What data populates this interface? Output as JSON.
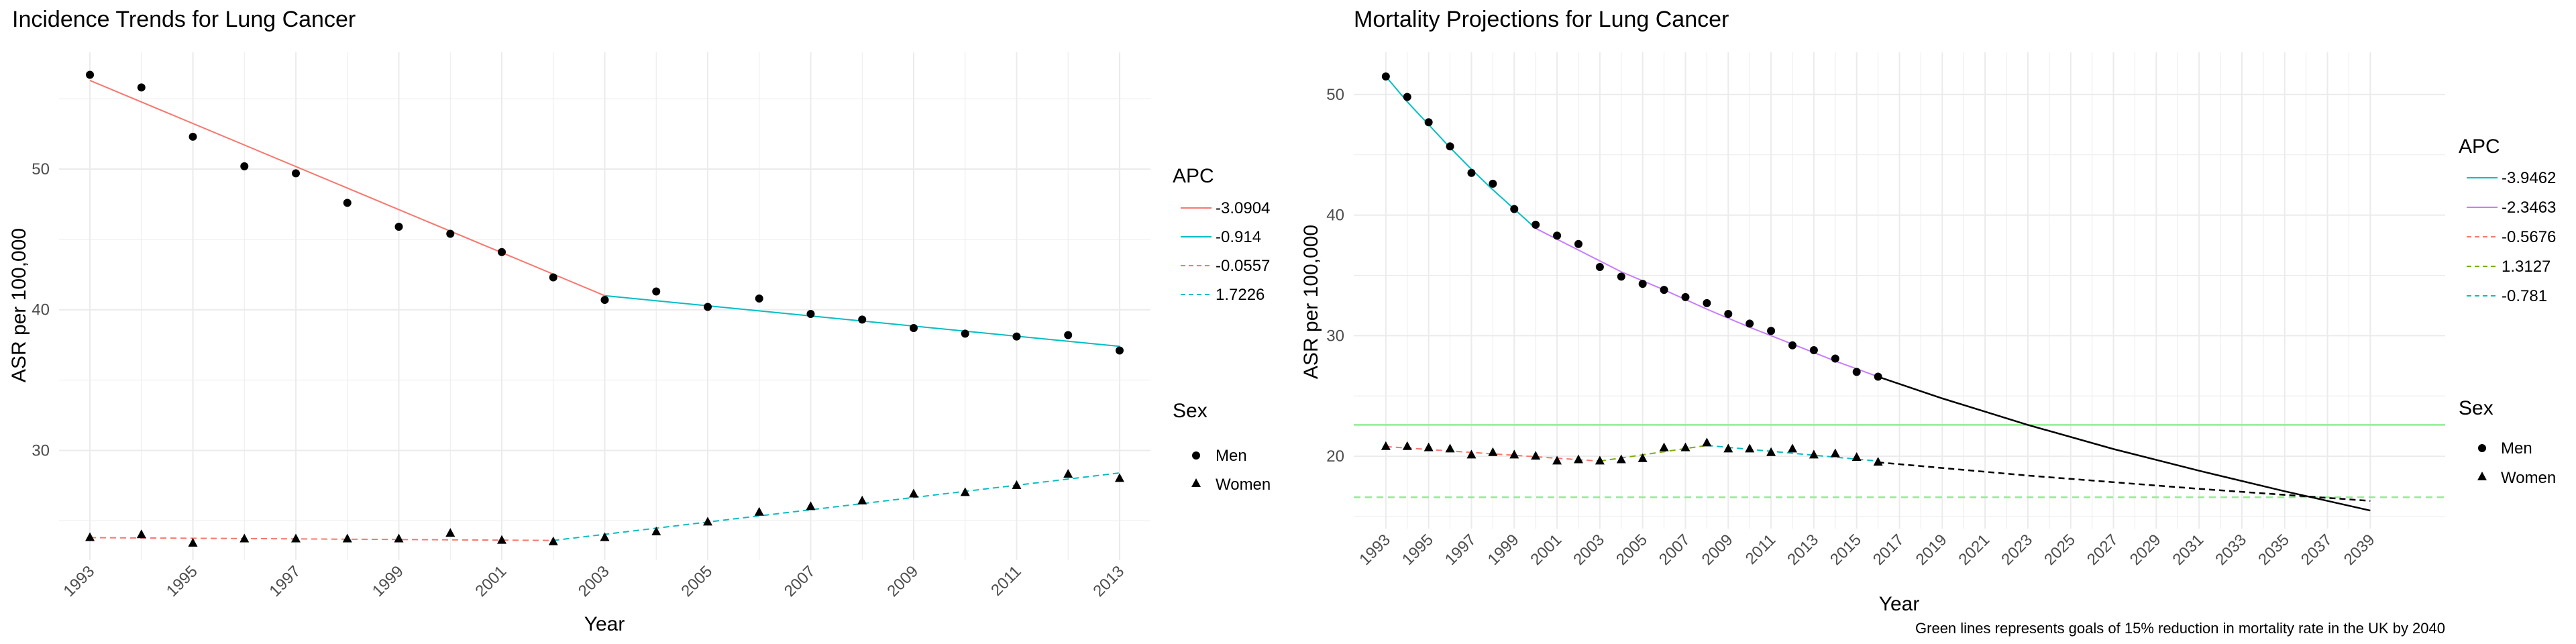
{
  "colors": {
    "red": "#F8766D",
    "cyan": "#00BFC4",
    "purple": "#C77CFF",
    "olive": "#7CAE00",
    "green": "#90EE90",
    "black": "#000000",
    "grid": "#EBEBEB"
  },
  "chart_data": [
    {
      "type": "line",
      "title": "Incidence Trends for Lung Cancer",
      "xlabel": "Year",
      "ylabel": "ASR per 100,000",
      "xlim": [
        1992.4,
        2013.6
      ],
      "ylim": [
        22.2,
        58.3
      ],
      "x_ticks": [
        1993,
        1995,
        1997,
        1999,
        2001,
        2003,
        2005,
        2007,
        2009,
        2011,
        2013
      ],
      "y_ticks": [
        30,
        40,
        50
      ],
      "grid": true,
      "legend_position": "right",
      "legend": {
        "apc_title": "APC",
        "apc_entries": [
          {
            "label": "-3.0904",
            "color": "#F8766D",
            "dashed": false
          },
          {
            "label": "-0.914",
            "color": "#00BFC4",
            "dashed": false
          },
          {
            "label": "-0.0557",
            "color": "#F8766D",
            "dashed": true
          },
          {
            "label": "1.7226",
            "color": "#00BFC4",
            "dashed": true
          }
        ],
        "sex_title": "Sex",
        "sex_entries": [
          {
            "label": "Men",
            "shape": "circle"
          },
          {
            "label": "Women",
            "shape": "triangle"
          }
        ]
      },
      "series": [
        {
          "name": "Men",
          "shape": "circle",
          "x": [
            1993,
            1994,
            1995,
            1996,
            1997,
            1998,
            1999,
            2000,
            2001,
            2002,
            2003,
            2004,
            2005,
            2006,
            2007,
            2008,
            2009,
            2010,
            2011,
            2012,
            2013
          ],
          "y": [
            56.7,
            55.8,
            52.3,
            50.2,
            49.7,
            47.6,
            45.9,
            45.4,
            44.1,
            42.3,
            40.7,
            41.3,
            40.2,
            40.8,
            39.7,
            39.3,
            38.7,
            38.3,
            38.1,
            38.2,
            37.1
          ]
        },
        {
          "name": "Women",
          "shape": "triangle",
          "x": [
            1993,
            1994,
            1995,
            1996,
            1997,
            1998,
            1999,
            2000,
            2001,
            2002,
            2003,
            2004,
            2005,
            2006,
            2007,
            2008,
            2009,
            2010,
            2011,
            2012,
            2013
          ],
          "y": [
            23.8,
            24.0,
            23.4,
            23.7,
            23.7,
            23.7,
            23.7,
            24.1,
            23.6,
            23.5,
            23.8,
            24.2,
            24.9,
            25.6,
            26.0,
            26.4,
            26.9,
            27.0,
            27.5,
            28.3,
            28.0
          ]
        }
      ],
      "fitted_lines": [
        {
          "apc": "-3.0904",
          "color": "#F8766D",
          "dashed": false,
          "x": [
            1993,
            2003
          ],
          "y": [
            56.3,
            41.0
          ]
        },
        {
          "apc": "-0.914",
          "color": "#00BFC4",
          "dashed": false,
          "x": [
            2003,
            2013
          ],
          "y": [
            41.0,
            37.4
          ]
        },
        {
          "apc": "-0.0557",
          "color": "#F8766D",
          "dashed": true,
          "x": [
            1993,
            2002
          ],
          "y": [
            23.8,
            23.6
          ]
        },
        {
          "apc": "1.7226",
          "color": "#00BFC4",
          "dashed": true,
          "x": [
            2002,
            2013
          ],
          "y": [
            23.6,
            28.4
          ]
        }
      ]
    },
    {
      "type": "line",
      "title": "Mortality Projections for Lung Cancer",
      "xlabel": "Year",
      "ylabel": "ASR per 100,000",
      "xlim": [
        1991.5,
        2042.5
      ],
      "ylim": [
        14.0,
        53.5
      ],
      "x_ticks": [
        1993,
        1995,
        1997,
        1999,
        2001,
        2003,
        2005,
        2007,
        2009,
        2011,
        2013,
        2015,
        2017,
        2019,
        2021,
        2023,
        2025,
        2027,
        2029,
        2031,
        2033,
        2035,
        2037,
        2039
      ],
      "y_ticks": [
        20,
        30,
        40,
        50
      ],
      "grid": true,
      "legend_position": "right",
      "caption": "Green lines represents goals of 15% reduction in mortality rate in the UK by 2040",
      "legend": {
        "apc_title": "APC",
        "apc_entries": [
          {
            "label": "-3.9462",
            "color": "#00BFC4",
            "dashed": false
          },
          {
            "label": "-2.3463",
            "color": "#C77CFF",
            "dashed": false
          },
          {
            "label": "-0.5676",
            "color": "#F8766D",
            "dashed": true
          },
          {
            "label": "1.3127",
            "color": "#7CAE00",
            "dashed": true
          },
          {
            "label": "-0.781",
            "color": "#00BFC4",
            "dashed": true
          }
        ],
        "sex_title": "Sex",
        "sex_entries": [
          {
            "label": "Men",
            "shape": "circle"
          },
          {
            "label": "Women",
            "shape": "triangle"
          }
        ]
      },
      "series": [
        {
          "name": "Men",
          "shape": "circle",
          "x": [
            1993,
            1994,
            1995,
            1996,
            1997,
            1998,
            1999,
            2000,
            2001,
            2002,
            2003,
            2004,
            2005,
            2006,
            2007,
            2008,
            2009,
            2010,
            2011,
            2012,
            2013,
            2014,
            2015,
            2016
          ],
          "y": [
            51.5,
            49.8,
            47.7,
            45.7,
            43.5,
            42.6,
            40.5,
            39.2,
            38.3,
            37.6,
            35.7,
            34.9,
            34.3,
            33.8,
            33.2,
            32.7,
            31.8,
            31.0,
            30.4,
            29.2,
            28.8,
            28.1,
            27.0,
            26.6
          ]
        },
        {
          "name": "Women",
          "shape": "triangle",
          "x": [
            1993,
            1994,
            1995,
            1996,
            1997,
            1998,
            1999,
            2000,
            2001,
            2002,
            2003,
            2004,
            2005,
            2006,
            2007,
            2008,
            2009,
            2010,
            2011,
            2012,
            2013,
            2014,
            2015,
            2016
          ],
          "y": [
            20.8,
            20.8,
            20.7,
            20.6,
            20.1,
            20.3,
            20.1,
            20.0,
            19.6,
            19.7,
            19.6,
            19.7,
            19.8,
            20.7,
            20.7,
            21.1,
            20.6,
            20.6,
            20.3,
            20.6,
            20.1,
            20.2,
            19.9,
            19.5
          ]
        }
      ],
      "fitted_lines": [
        {
          "apc": "-3.9462",
          "color": "#00BFC4",
          "dashed": false,
          "x": [
            1993,
            1994,
            1995,
            1996,
            1997,
            1998,
            1999,
            2000
          ],
          "y": [
            51.5,
            49.4,
            47.5,
            45.6,
            43.8,
            42.1,
            40.5,
            38.9
          ]
        },
        {
          "apc": "-2.3463",
          "color": "#C77CFF",
          "dashed": false,
          "x": [
            2000,
            2002,
            2004,
            2006,
            2008,
            2010,
            2012,
            2014,
            2016
          ],
          "y": [
            38.9,
            37.1,
            35.3,
            33.8,
            32.2,
            30.7,
            29.3,
            27.9,
            26.6
          ]
        },
        {
          "apc": "-0.5676",
          "color": "#F8766D",
          "dashed": true,
          "x": [
            1993,
            2003
          ],
          "y": [
            20.8,
            19.6
          ]
        },
        {
          "apc": "1.3127",
          "color": "#7CAE00",
          "dashed": true,
          "x": [
            2003,
            2008
          ],
          "y": [
            19.6,
            20.9
          ]
        },
        {
          "apc": "-0.781",
          "color": "#00BFC4",
          "dashed": true,
          "x": [
            2008,
            2016
          ],
          "y": [
            20.9,
            19.6
          ]
        },
        {
          "name": "Men projection",
          "color": "#000000",
          "dashed": false,
          "x": [
            2016,
            2019,
            2023,
            2027,
            2031,
            2035,
            2039
          ],
          "y": [
            26.6,
            24.8,
            22.6,
            20.6,
            18.8,
            17.1,
            15.5
          ]
        },
        {
          "name": "Women projection",
          "color": "#000000",
          "dashed": true,
          "x": [
            2016,
            2023,
            2031,
            2039
          ],
          "y": [
            19.5,
            18.4,
            17.3,
            16.3
          ]
        }
      ],
      "reference_lines": [
        {
          "y": 22.6,
          "color": "#90EE90",
          "dashed": false
        },
        {
          "y": 16.6,
          "color": "#90EE90",
          "dashed": true
        }
      ]
    }
  ]
}
